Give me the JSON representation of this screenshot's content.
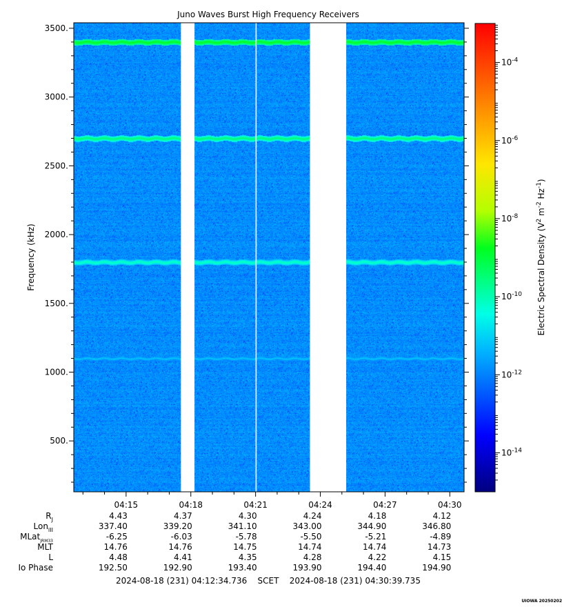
{
  "chart_data": {
    "type": "heatmap",
    "title": "Juno Waves Burst High Frequency Receivers",
    "ylabel": "Frequency (kHz)",
    "ylim": [
      130,
      3540
    ],
    "y_ticks": [
      500,
      1000,
      1500,
      2000,
      2500,
      3000,
      3500
    ],
    "y_tick_labels": [
      "500.",
      "1000.",
      "1500.",
      "2000.",
      "2500.",
      "3000.",
      "3500."
    ],
    "x_range_minutes": [
      252.576,
      270.662
    ],
    "x_ticks": [
      "04:15",
      "04:18",
      "04:21",
      "04:24",
      "04:27",
      "04:30"
    ],
    "x_tick_minutes": [
      255,
      258,
      261,
      264,
      267,
      270
    ],
    "data_gaps_minutes": [
      [
        257.54,
        258.17
      ],
      [
        261.0,
        261.05
      ],
      [
        263.52,
        265.2
      ]
    ],
    "emission_lines_khz": [
      {
        "khz": 3400,
        "intensity": -8.7
      },
      {
        "khz": 2700,
        "intensity": -9.4
      },
      {
        "khz": 1800,
        "intensity": -10.0
      },
      {
        "khz": 1100,
        "intensity": -11.1
      }
    ],
    "background_log10": -11.8,
    "colorbar": {
      "label_main": "Electric Spectral Density",
      "label_units": "(V",
      "min_exp": -15,
      "max_exp": -3,
      "tick_exponents": [
        -14,
        -12,
        -10,
        -8,
        -6,
        -4
      ],
      "tick_base": "10",
      "tick_sup": [
        "-14",
        "-12",
        "-10",
        "-8",
        "-6",
        "-4"
      ]
    },
    "ephemeris_labels": [
      {
        "main": "R",
        "sub": "J"
      },
      {
        "main": "Lon",
        "sub": "III"
      },
      {
        "main": "MLat",
        "sub": "JRM33"
      },
      {
        "main": "MLT",
        "sub": ""
      },
      {
        "main": "L",
        "sub": ""
      },
      {
        "main": "Io Phase",
        "sub": ""
      }
    ],
    "ephemeris_rows": [
      [
        "4.43",
        "4.37",
        "4.30",
        "4.24",
        "4.18",
        "4.12"
      ],
      [
        "337.40",
        "339.20",
        "341.10",
        "343.00",
        "344.90",
        "346.80"
      ],
      [
        "-6.25",
        "-6.03",
        "-5.78",
        "-5.50",
        "-5.21",
        "-4.89"
      ],
      [
        "14.76",
        "14.76",
        "14.75",
        "14.74",
        "14.74",
        "14.73"
      ],
      [
        "4.48",
        "4.41",
        "4.35",
        "4.28",
        "4.22",
        "4.15"
      ],
      [
        "192.50",
        "192.90",
        "193.40",
        "193.90",
        "194.40",
        "194.90"
      ]
    ],
    "time_span": "2024-08-18 (231) 04:12:34.736    SCET    2024-08-18 (231) 04:30:39.735",
    "stamp": "UIOWA 20250202"
  }
}
